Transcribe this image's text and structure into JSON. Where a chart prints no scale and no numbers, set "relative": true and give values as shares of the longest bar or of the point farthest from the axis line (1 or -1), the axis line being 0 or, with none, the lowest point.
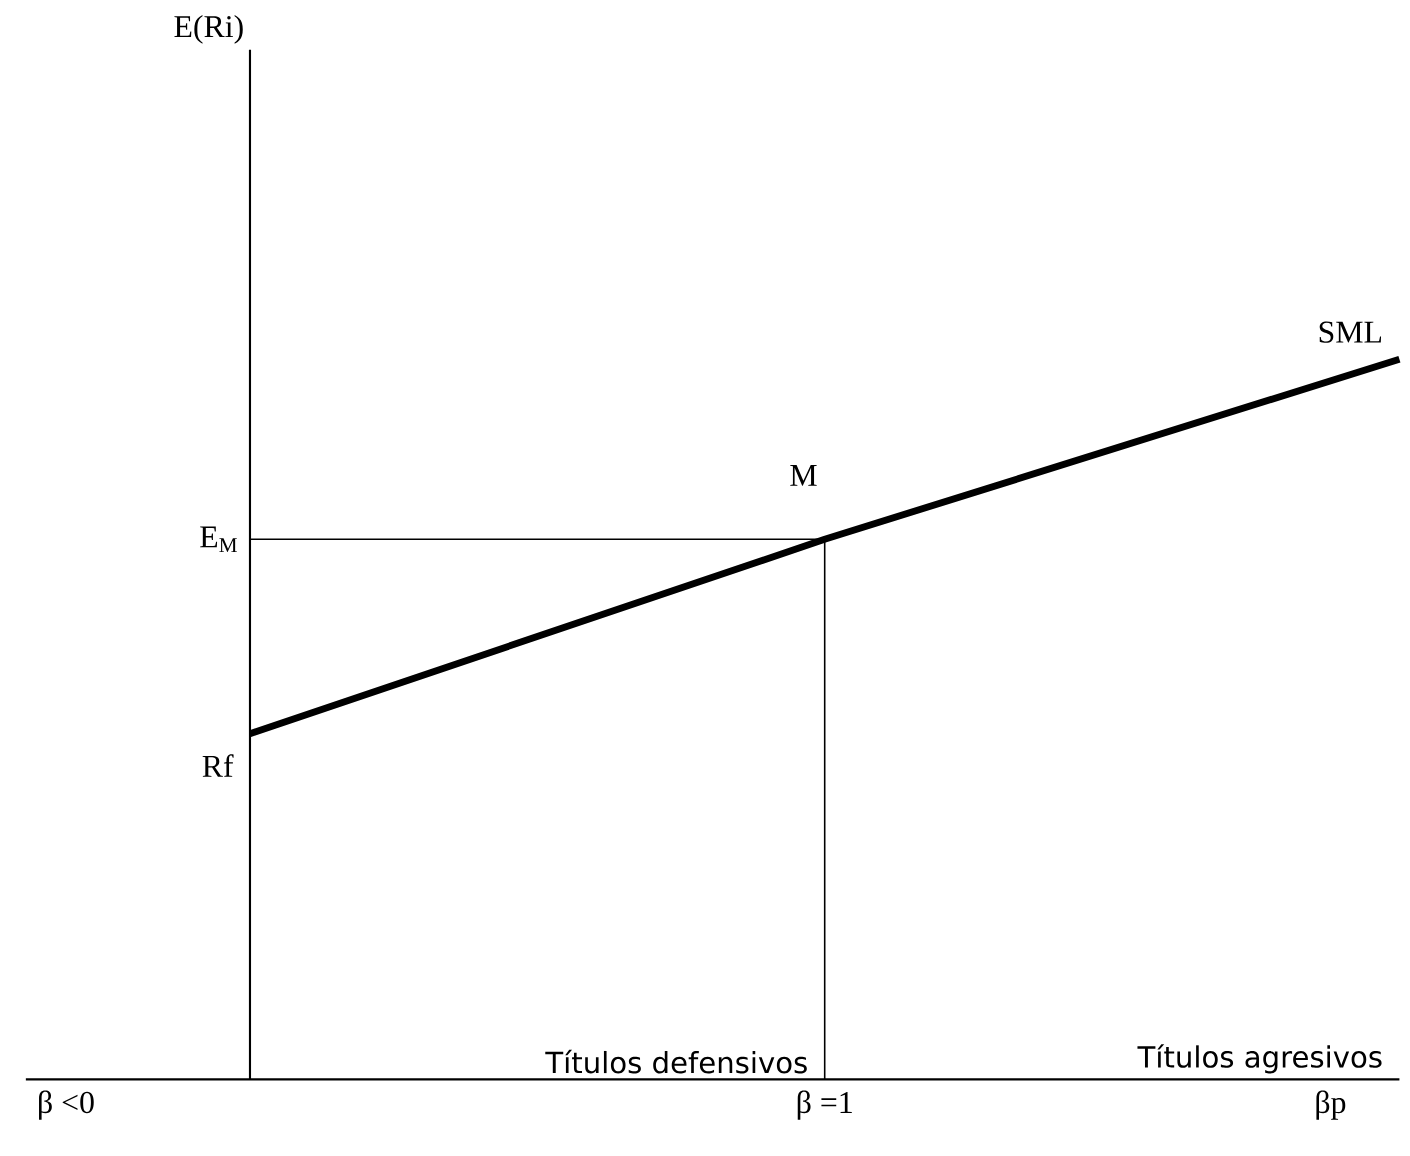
{
  "chart_data": {
    "type": "line",
    "relative": true,
    "xlabel": "βp",
    "categories": [
      null,
      null,
      null
    ],
    "series": [
      {
        "name": "SML",
        "color": "#000000",
        "values": [
          0.48,
          0.75,
          1
        ]
      }
    ],
    "ref_lines": [
      {
        "axis": "y",
        "value": 0.75,
        "label": "E$_{M}$"
      }
    ],
    "annotations": [
      "E(Ri)",
      "Rf",
      "M",
      "β <0",
      "β =1",
      "Títulos defensivos",
      "Títulos agresivos"
    ]
  }
}
